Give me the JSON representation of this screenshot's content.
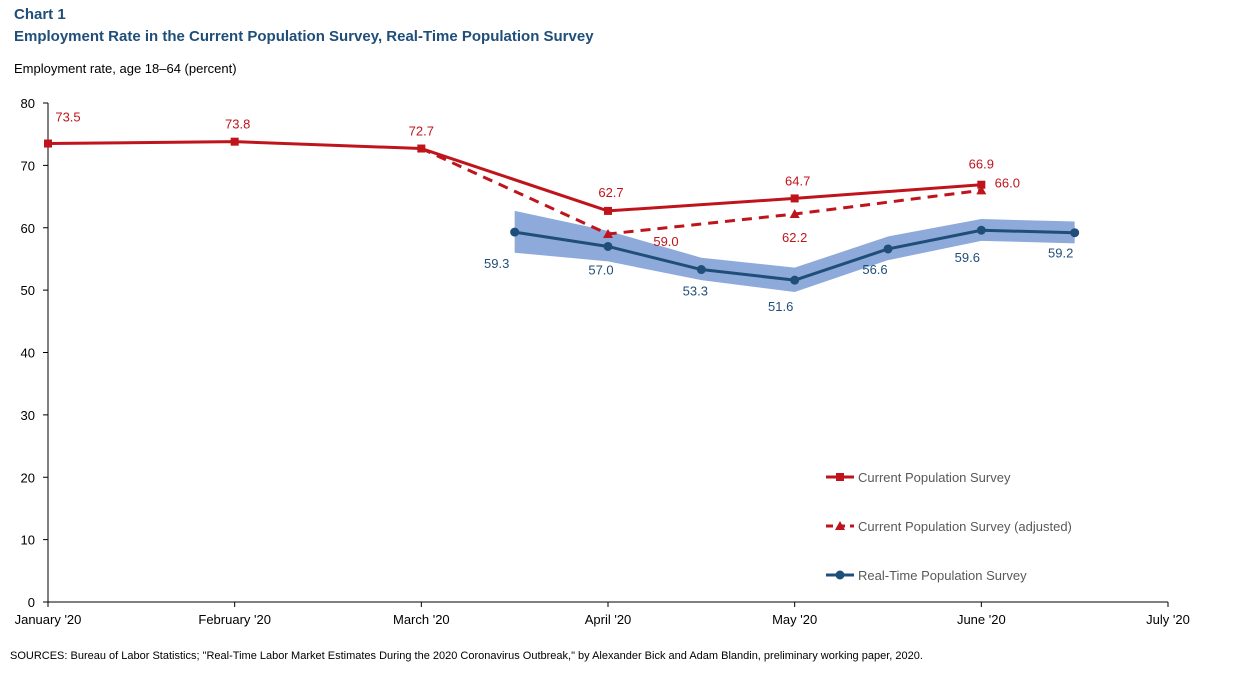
{
  "header": {
    "chart_label": "Chart 1",
    "title": "Employment Rate in the Current Population Survey, Real-Time Population Survey"
  },
  "footer": {
    "source": "SOURCES: Bureau of Labor Statistics; \"Real-Time Labor Market Estimates During the 2020 Coronavirus Outbreak,\" by Alexander Bick and Adam Blandin, preliminary working paper, 2020."
  },
  "colors": {
    "cps": "#c0141c",
    "rps": "#1f4e79",
    "band": "#8eaadb",
    "axis": "#000000"
  },
  "chart_data": {
    "type": "line",
    "title": "Employment Rate in the Current Population Survey, Real-Time Population Survey",
    "ylabel": "Employment rate, age 18–64 (percent)",
    "xlabel": "",
    "ylim": [
      0,
      80
    ],
    "yticks": [
      0,
      10,
      20,
      30,
      40,
      50,
      60,
      70,
      80
    ],
    "xlim": [
      0,
      6
    ],
    "x_ticks": [
      {
        "x": 0,
        "label": "January '20"
      },
      {
        "x": 1,
        "label": "February '20"
      },
      {
        "x": 2,
        "label": "March '20"
      },
      {
        "x": 3,
        "label": "April '20"
      },
      {
        "x": 4,
        "label": "May '20"
      },
      {
        "x": 5,
        "label": "June '20"
      },
      {
        "x": 6,
        "label": "July '20"
      }
    ],
    "grid": false,
    "legend_position": "bottom-right",
    "series": [
      {
        "name": "Current Population Survey",
        "style": "solid",
        "marker": "square",
        "x": [
          0,
          1,
          2,
          3,
          4,
          5
        ],
        "y": [
          73.5,
          73.8,
          72.7,
          62.7,
          64.7,
          66.9
        ],
        "labels": [
          "73.5",
          "73.8",
          "72.7",
          "62.7",
          "64.7",
          "66.9"
        ]
      },
      {
        "name": "Current Population Survey (adjusted)",
        "style": "dashed",
        "marker": "triangle",
        "x": [
          2,
          3,
          4,
          5
        ],
        "y": [
          72.7,
          59.0,
          62.2,
          66.0
        ],
        "labels": [
          "",
          "59.0",
          "62.2",
          "66.0"
        ]
      },
      {
        "name": "Real-Time Population Survey",
        "style": "solid",
        "marker": "circle",
        "x": [
          2.5,
          3,
          3.5,
          4,
          4.5,
          5,
          5.5
        ],
        "y": [
          59.3,
          57.0,
          53.3,
          51.6,
          56.6,
          59.6,
          59.2
        ],
        "labels": [
          "59.3",
          "57.0",
          "53.3",
          "51.6",
          "56.6",
          "59.6",
          "59.2"
        ],
        "band_lower": [
          56.0,
          54.6,
          51.6,
          49.7,
          54.8,
          57.9,
          57.5
        ],
        "band_upper": [
          62.7,
          59.5,
          55.2,
          53.6,
          58.6,
          61.4,
          61.0
        ]
      }
    ]
  }
}
